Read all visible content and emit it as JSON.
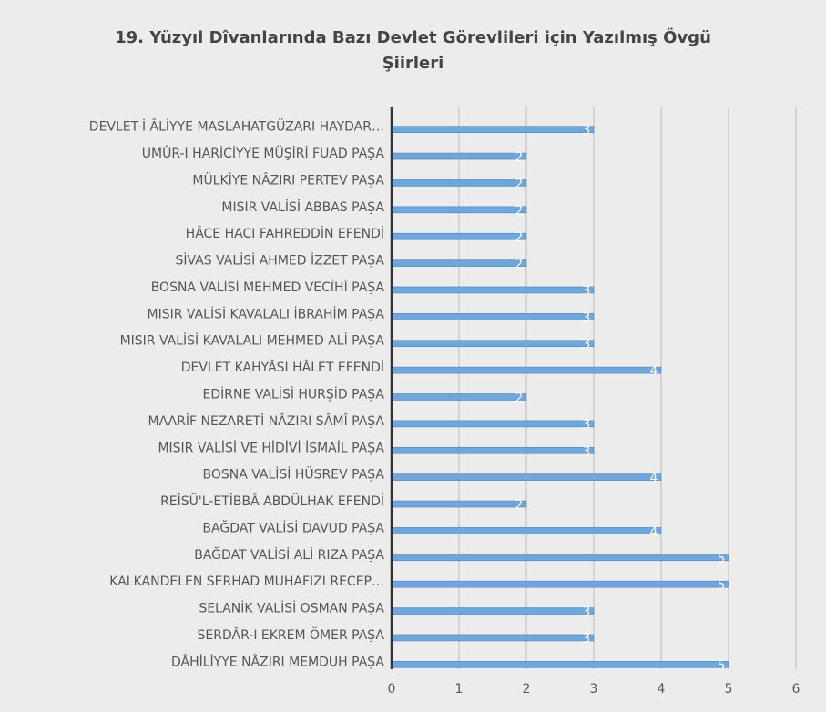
{
  "chart_data": {
    "type": "hbar",
    "title": "19. Yüzyıl Dîvanlarında Bazı Devlet Görevlileri için Yazılmış Övgü Şiirleri",
    "categories": [
      "DEVLET-İ ÂLİYYE MASLAHATGÜZARI HAYDAR…",
      "UMÛR-I HARİCİYYE MÜŞİRİ FUAD PAŞA",
      "MÜLKİYE NÂZIRI PERTEV PAŞA",
      "MISIR VALİSİ ABBAS PAŞA",
      "HÂCE HACI FAHREDDİN EFENDİ",
      "SİVAS VALİSİ AHMED İZZET PAŞA",
      "BOSNA VALİSİ MEHMED VECÎHÎ PAŞA",
      "MISIR VALİSİ KAVALALI İBRAHİM PAŞA",
      "MISIR VALİSİ KAVALALI MEHMED ALİ PAŞA",
      "DEVLET KAHYÂSI HÂLET EFENDİ",
      "EDİRNE VALİSİ HURŞİD PAŞA",
      "MAARİF NEZARETİ NÂZIRI SÂMÎ PAŞA",
      "MISIR VALİSİ VE HİDİVİ İSMAİL PAŞA",
      "BOSNA VALİSİ HÜSREV PAŞA",
      "REİSÜ'L-ETİBBÂ ABDÜLHAK EFENDİ",
      "BAĞDAT VALİSİ DAVUD PAŞA",
      "BAĞDAT VALİSİ ALİ RIZA PAŞA",
      "KALKANDELEN SERHAD MUHAFIZI RECEP…",
      "SELANİK VALİSİ OSMAN PAŞA",
      "SERDÂR-I EKREM ÖMER PAŞA",
      "DÂHİLİYYE NÂZIRI MEMDUH PAŞA"
    ],
    "values": [
      3,
      2,
      2,
      2,
      2,
      2,
      3,
      3,
      3,
      4,
      2,
      3,
      3,
      4,
      2,
      4,
      5,
      5,
      3,
      3,
      5
    ],
    "color": "#6fa6dc",
    "xlim": [
      0,
      6
    ],
    "xticks": [
      0,
      1,
      2,
      3,
      4,
      5,
      6
    ],
    "grid": true
  }
}
